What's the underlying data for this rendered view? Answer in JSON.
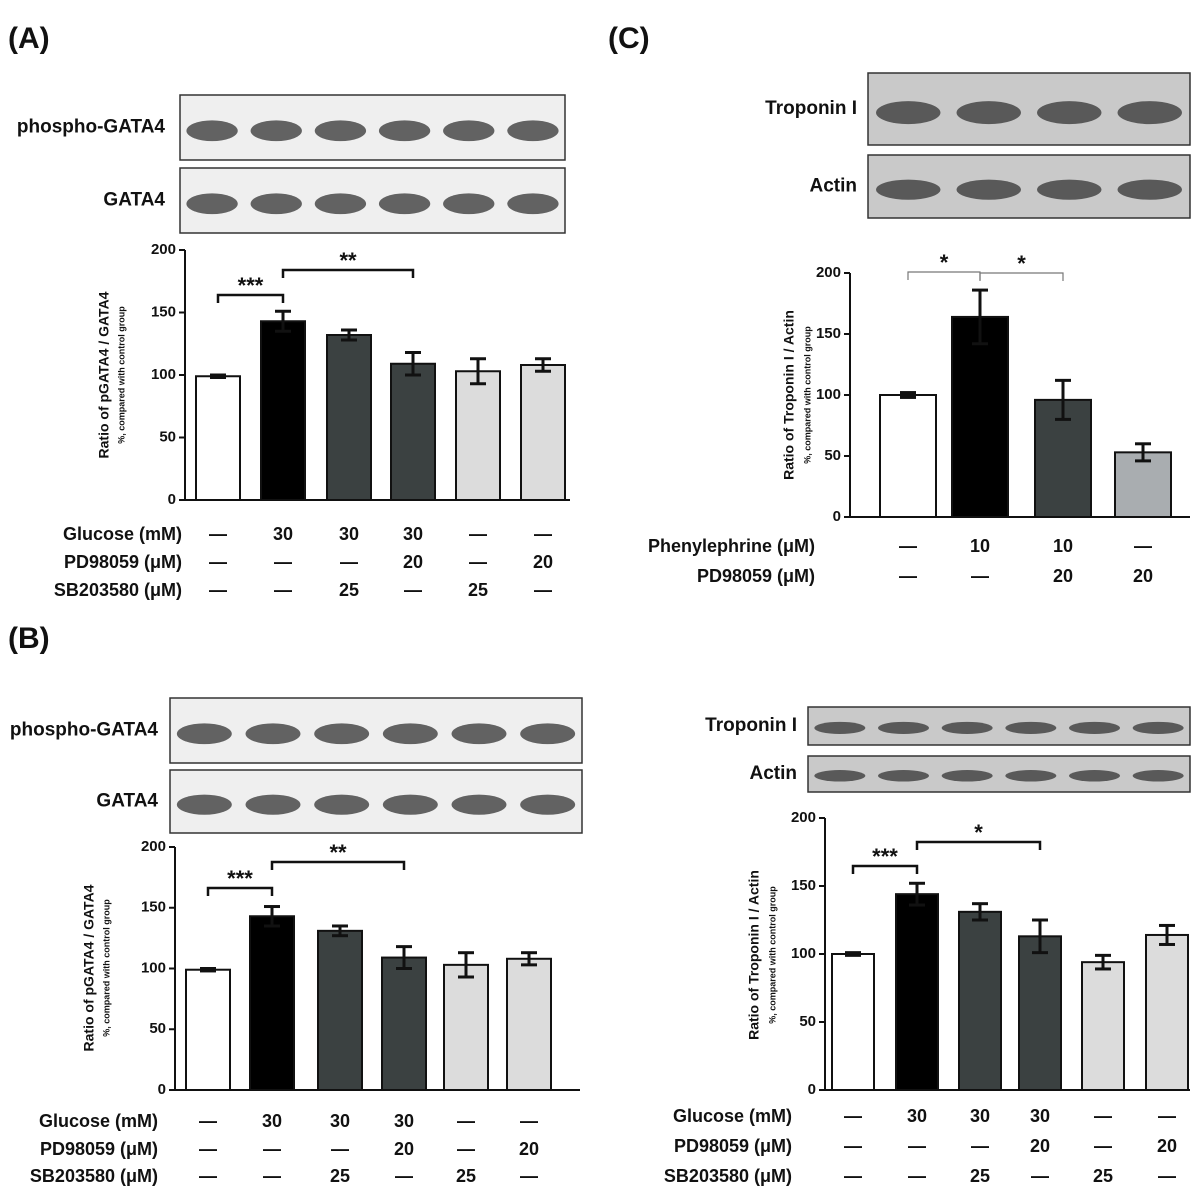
{
  "chart_data": [
    {
      "type": "bar",
      "panel": "(A)",
      "blots": [
        "phospho-GATA4",
        "GATA4"
      ],
      "ylabel": "Ratio of pGATA4 / GATA4",
      "ysublabel": "%, compared with control group",
      "ylim": [
        0,
        200
      ],
      "yticks": [
        0,
        50,
        100,
        150,
        200
      ],
      "values": [
        99,
        143,
        132,
        109,
        103,
        108
      ],
      "errors": [
        1,
        8,
        4,
        9,
        10,
        5
      ],
      "colors": [
        "#ffffff",
        "#000000",
        "#3b4141",
        "#3b4141",
        "#dcdcdc",
        "#dcdcdc"
      ],
      "annotations": [
        "***",
        "**"
      ],
      "conditions": [
        {
          "label": "Glucose (mM)",
          "values": [
            "—",
            "30",
            "30",
            "30",
            "—",
            "—"
          ]
        },
        {
          "label": "PD98059 (μM)",
          "values": [
            "—",
            "—",
            "—",
            "20",
            "—",
            "20"
          ]
        },
        {
          "label": "SB203580 (μM)",
          "values": [
            "—",
            "—",
            "25",
            "—",
            "25",
            "—"
          ]
        }
      ]
    },
    {
      "type": "bar",
      "panel": "(B)",
      "blots": [
        "phospho-GATA4",
        "GATA4"
      ],
      "ylabel": "Ratio of pGATA4 / GATA4",
      "ysublabel": "%, compared with control group",
      "ylim": [
        0,
        200
      ],
      "yticks": [
        0,
        50,
        100,
        150,
        200
      ],
      "values": [
        99,
        143,
        131,
        109,
        103,
        108
      ],
      "errors": [
        1,
        8,
        4,
        9,
        10,
        5
      ],
      "colors": [
        "#ffffff",
        "#000000",
        "#3b4141",
        "#3b4141",
        "#dcdcdc",
        "#dcdcdc"
      ],
      "annotations": [
        "***",
        "**"
      ],
      "conditions": [
        {
          "label": "Glucose (mM)",
          "values": [
            "—",
            "30",
            "30",
            "30",
            "—",
            "—"
          ]
        },
        {
          "label": "PD98059 (μM)",
          "values": [
            "—",
            "—",
            "—",
            "20",
            "—",
            "20"
          ]
        },
        {
          "label": "SB203580 (μM)",
          "values": [
            "—",
            "—",
            "25",
            "—",
            "25",
            "—"
          ]
        }
      ]
    },
    {
      "type": "bar",
      "panel": "(C)",
      "blots": [
        "Troponin I",
        "Actin"
      ],
      "ylabel": "Ratio of Troponin I / Actin",
      "ysublabel": "%, compared with control group",
      "ylim": [
        0,
        200
      ],
      "yticks": [
        0,
        50,
        100,
        150,
        200
      ],
      "values": [
        100,
        164,
        96,
        53
      ],
      "errors": [
        2,
        22,
        16,
        7
      ],
      "colors": [
        "#ffffff",
        "#000000",
        "#3b4141",
        "#a9adb0"
      ],
      "annotations": [
        "*",
        "*"
      ],
      "conditions": [
        {
          "label": "Phenylephrine (μM)",
          "values": [
            "—",
            "10",
            "10",
            "—"
          ]
        },
        {
          "label": "PD98059 (μM)",
          "values": [
            "—",
            "—",
            "20",
            "20"
          ]
        }
      ]
    },
    {
      "type": "bar",
      "blots": [
        "Troponin I",
        "Actin"
      ],
      "ylabel": "Ratio of Troponin I / Actin",
      "ysublabel": "%, compared with control group",
      "ylim": [
        0,
        200
      ],
      "yticks": [
        0,
        50,
        100,
        150,
        200
      ],
      "values": [
        100,
        144,
        131,
        113,
        94,
        114
      ],
      "errors": [
        1,
        8,
        6,
        12,
        5,
        7
      ],
      "colors": [
        "#ffffff",
        "#000000",
        "#3b4141",
        "#3b4141",
        "#dcdcdc",
        "#dcdcdc"
      ],
      "annotations": [
        "***",
        "*"
      ],
      "conditions": [
        {
          "label": "Glucose (mM)",
          "values": [
            "—",
            "30",
            "30",
            "30",
            "—",
            "—"
          ]
        },
        {
          "label": "PD98059 (μM)",
          "values": [
            "—",
            "—",
            "—",
            "20",
            "—",
            "20"
          ]
        },
        {
          "label": "SB203580 (μM)",
          "values": [
            "—",
            "—",
            "25",
            "—",
            "25",
            "—"
          ]
        }
      ]
    }
  ]
}
